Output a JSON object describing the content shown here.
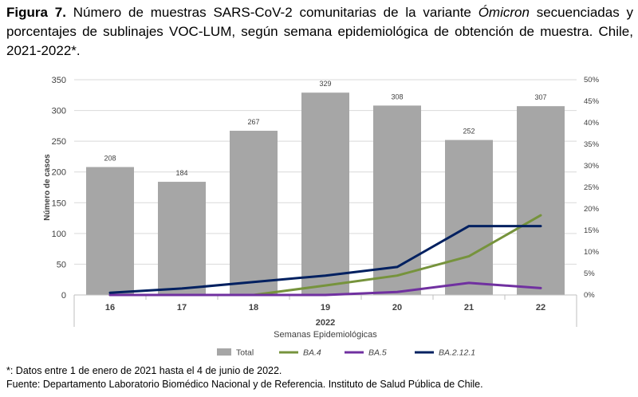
{
  "caption": {
    "label": "Figura 7.",
    "text_before": " Número de muestras SARS-CoV-2 comunitarias de la variante ",
    "variant": "Ómicron",
    "text_after": " secuenciadas y porcentajes de sublinajes VOC-LUM, según semana epidemiológica de obtención de muestra. Chile, 2021-2022*."
  },
  "notes": {
    "footnote": "*: Datos entre 1 de enero de 2021 hasta el 4 de junio de 2022.",
    "source": "Fuente: Departamento Laboratorio Biomédico Nacional y de Referencia. Instituto de Salud Pública de Chile."
  },
  "chart_data": {
    "type": "bar",
    "categories": [
      "16",
      "17",
      "18",
      "19",
      "20",
      "21",
      "22"
    ],
    "x_group_label": "2022",
    "xlabel": "Semanas Epidemiológicas",
    "ylabel": "Número de casos",
    "ylim": [
      0,
      350
    ],
    "y_ticks": [
      0,
      50,
      100,
      150,
      200,
      250,
      300,
      350
    ],
    "y2lim": [
      0,
      50
    ],
    "y2_ticks": [
      "0%",
      "5%",
      "10%",
      "15%",
      "20%",
      "25%",
      "30%",
      "35%",
      "40%",
      "45%",
      "50%"
    ],
    "grid": true,
    "legend_position": "bottom",
    "bar_series": {
      "name": "Total",
      "color": "#a6a6a6",
      "values": [
        208,
        184,
        267,
        329,
        308,
        252,
        307
      ]
    },
    "line_series": [
      {
        "name": "BA.4",
        "color": "#76933c",
        "values_pct": [
          0,
          0,
          0,
          2.2,
          4.5,
          9,
          18.5
        ]
      },
      {
        "name": "BA.5",
        "color": "#7030a0",
        "values_pct": [
          0,
          0,
          0,
          0,
          0.7,
          2.8,
          1.6
        ]
      },
      {
        "name": "BA.2.12.1",
        "color": "#002060",
        "values_pct": [
          0.5,
          1.5,
          3.0,
          4.5,
          6.5,
          16,
          16
        ]
      }
    ]
  }
}
